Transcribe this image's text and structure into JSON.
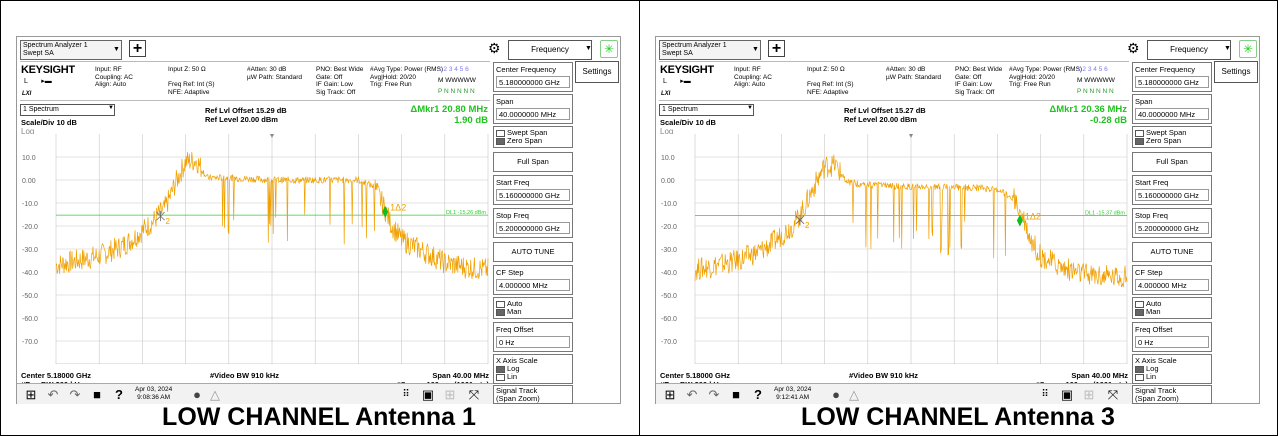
{
  "panels": [
    {
      "caption": "LOW CHANNEL Antenna 1",
      "app_tab_title": [
        "Spectrum Analyzer 1",
        "Swept SA"
      ],
      "mode_menu": "Frequency",
      "settings_label": "Settings",
      "logo": "KEYSIGHT",
      "hdr_input": [
        "Input: RF",
        "Coupling: AC",
        "Align: Auto"
      ],
      "hdr_input2": [
        "Input Z: 50 Ω",
        "",
        "Freq Ref: Int (S)",
        "NFE: Adaptive"
      ],
      "hdr_atten": [
        "#Atten: 30 dB",
        "µW Path: Standard"
      ],
      "hdr_pno": [
        "PNO: Best Wide",
        "Gate: Off",
        "IF Gain: Low",
        "Sig Track: Off"
      ],
      "hdr_avg": [
        "#Avg Type: Power (RMS)",
        "Avg|Hold: 20/20",
        "Trig: Free Run"
      ],
      "trace_nums": "1 2 3 4 5 6",
      "trace_m": "M WWWWW",
      "trace_p": "P N N N N N",
      "lxi": "LXI",
      "spectrum_select": "1 Spectrum",
      "ref_offset": "Ref Lvl Offset 15.29 dB",
      "ref_level": "Ref Level 20.00 dBm",
      "scale_div": "Scale/Div 10 dB",
      "log_label": "Log",
      "marker_line1": "ΔMkr1  20.80 MHz",
      "marker_line2": "1.90 dB",
      "y_ticks": [
        "10.0",
        "0.00",
        "-10.0",
        "-20.0",
        "-30.0",
        "-40.0",
        "-50.0",
        "-60.0",
        "-70.0"
      ],
      "dl_label": "DL1 -15.26 dBm",
      "marker_tag_delta": "1Δ2",
      "marker_tag_ref": "2",
      "center": "Center 5.18000 GHz",
      "res_bw": "#Res BW 300 kHz",
      "video_bw": "#Video BW 910 kHz",
      "span": "Span 40.00 MHz",
      "sweep": "#Sweep 100 ms (1001 pts)",
      "date": "Apr 03, 2024",
      "time": "9:08:36 AM",
      "side": {
        "center_label": "Center Frequency",
        "center_val": "5.180000000 GHz",
        "span_label": "Span",
        "span_val": "40.0000000 MHz",
        "swept_span": "Swept Span",
        "zero_span": "Zero Span",
        "full_span": "Full Span",
        "start_label": "Start Freq",
        "start_val": "5.160000000 GHz",
        "stop_label": "Stop Freq",
        "stop_val": "5.200000000 GHz",
        "auto_tune": "AUTO TUNE",
        "cf_step_label": "CF Step",
        "cf_step_val": "4.000000 MHz",
        "auto": "Auto",
        "man": "Man",
        "freq_offset_label": "Freq Offset",
        "freq_offset_val": "0 Hz",
        "x_axis_label": "X Axis Scale",
        "log": "Log",
        "lin": "Lin",
        "signal_track": "Signal Track",
        "signal_track_sub": "(Span Zoom)"
      }
    },
    {
      "caption": "LOW CHANNEL Antenna 3",
      "app_tab_title": [
        "Spectrum Analyzer 1",
        "Swept SA"
      ],
      "mode_menu": "Frequency",
      "settings_label": "Settings",
      "logo": "KEYSIGHT",
      "hdr_input": [
        "Input: RF",
        "Coupling: AC",
        "Align: Auto"
      ],
      "hdr_input2": [
        "Input Z: 50 Ω",
        "",
        "Freq Ref: Int (S)",
        "NFE: Adaptive"
      ],
      "hdr_atten": [
        "#Atten: 30 dB",
        "µW Path: Standard"
      ],
      "hdr_pno": [
        "PNO: Best Wide",
        "Gate: Off",
        "IF Gain: Low",
        "Sig Track: Off"
      ],
      "hdr_avg": [
        "#Avg Type: Power (RMS)",
        "Avg|Hold: 20/20",
        "Trig: Free Run"
      ],
      "trace_nums": "1 2 3 4 5 6",
      "trace_m": "M WWWWW",
      "trace_p": "P N N N N N",
      "lxi": "LXI",
      "spectrum_select": "1 Spectrum",
      "ref_offset": "Ref Lvl Offset 15.27 dB",
      "ref_level": "Ref Level 20.00 dBm",
      "scale_div": "Scale/Div 10 dB",
      "log_label": "Log",
      "marker_line1": "ΔMkr1  20.36 MHz",
      "marker_line2": "-0.28 dB",
      "y_ticks": [
        "10.0",
        "0.00",
        "-10.0",
        "-20.0",
        "-30.0",
        "-40.0",
        "-50.0",
        "-60.0",
        "-70.0"
      ],
      "dl_label": "DL1 -15.37 dBm",
      "marker_tag_delta": "1Δ2",
      "marker_tag_ref": "2",
      "center": "Center 5.18000 GHz",
      "res_bw": "#Res BW 300 kHz",
      "video_bw": "#Video BW 910 kHz",
      "span": "Span 40.00 MHz",
      "sweep": "#Sweep 100 ms (1001 pts)",
      "date": "Apr 03, 2024",
      "time": "9:12:41 AM",
      "side": {
        "center_label": "Center Frequency",
        "center_val": "5.180000000 GHz",
        "span_label": "Span",
        "span_val": "40.0000000 MHz",
        "swept_span": "Swept Span",
        "zero_span": "Zero Span",
        "full_span": "Full Span",
        "start_label": "Start Freq",
        "start_val": "5.160000000 GHz",
        "stop_label": "Stop Freq",
        "stop_val": "5.200000000 GHz",
        "auto_tune": "AUTO TUNE",
        "cf_step_label": "CF Step",
        "cf_step_val": "4.000000 MHz",
        "auto": "Auto",
        "man": "Man",
        "freq_offset_label": "Freq Offset",
        "freq_offset_val": "0 Hz",
        "x_axis_label": "X Axis Scale",
        "log": "Log",
        "lin": "Lin",
        "signal_track": "Signal Track",
        "signal_track_sub": "(Span Zoom)"
      }
    }
  ],
  "colors": {
    "trace": "#f0a000",
    "display_line": "#33cc33",
    "marker": "#11bb22",
    "grid": "#c8c8c8"
  },
  "chart_data": [
    {
      "type": "line",
      "xlabel": "",
      "ylabel": "",
      "x_unit": "GHz",
      "xlim": [
        5.16,
        5.2
      ],
      "ylim": [
        -80,
        20
      ],
      "display_line": -15.26,
      "markers": [
        {
          "x": 5.16968,
          "y": -15.7
        },
        {
          "x": 5.19048,
          "y": -13.8
        }
      ],
      "series": [
        {
          "x": [
            5.16,
            5.162,
            5.164,
            5.166,
            5.167,
            5.168,
            5.169,
            5.1695,
            5.17,
            5.1705,
            5.171,
            5.172,
            5.173,
            5.174,
            5.176,
            5.178,
            5.18,
            5.182,
            5.184,
            5.186,
            5.188,
            5.1895,
            5.1905,
            5.191,
            5.192,
            5.194,
            5.196,
            5.198,
            5.2
          ],
          "y": [
            -37,
            -35,
            -33,
            -29,
            -26,
            -22,
            -18,
            -15,
            -13,
            -8,
            -2,
            8,
            8.5,
            1,
            1,
            0.5,
            0,
            0,
            0,
            0,
            0,
            -3,
            -13,
            -19,
            -26,
            -31,
            -36,
            -38,
            -39
          ]
        }
      ]
    },
    {
      "type": "line",
      "xlabel": "",
      "ylabel": "",
      "x_unit": "GHz",
      "xlim": [
        5.16,
        5.2
      ],
      "ylim": [
        -80,
        20
      ],
      "display_line": -15.37,
      "markers": [
        {
          "x": 5.16972,
          "y": -17.3
        },
        {
          "x": 5.19008,
          "y": -17.6
        }
      ],
      "series": [
        {
          "x": [
            5.16,
            5.162,
            5.164,
            5.166,
            5.167,
            5.168,
            5.169,
            5.1695,
            5.17,
            5.1705,
            5.171,
            5.172,
            5.173,
            5.174,
            5.176,
            5.178,
            5.18,
            5.182,
            5.184,
            5.186,
            5.188,
            5.1895,
            5.1905,
            5.191,
            5.192,
            5.194,
            5.196,
            5.198,
            5.2
          ],
          "y": [
            -39,
            -37,
            -35,
            -31,
            -28,
            -24,
            -20,
            -17,
            -13,
            -8,
            -3,
            6,
            6.5,
            -1,
            -2,
            -2.5,
            -3,
            -3,
            -3,
            -3.5,
            -4,
            -8,
            -17,
            -25,
            -33,
            -38,
            -41,
            -42,
            -42
          ]
        }
      ]
    }
  ]
}
